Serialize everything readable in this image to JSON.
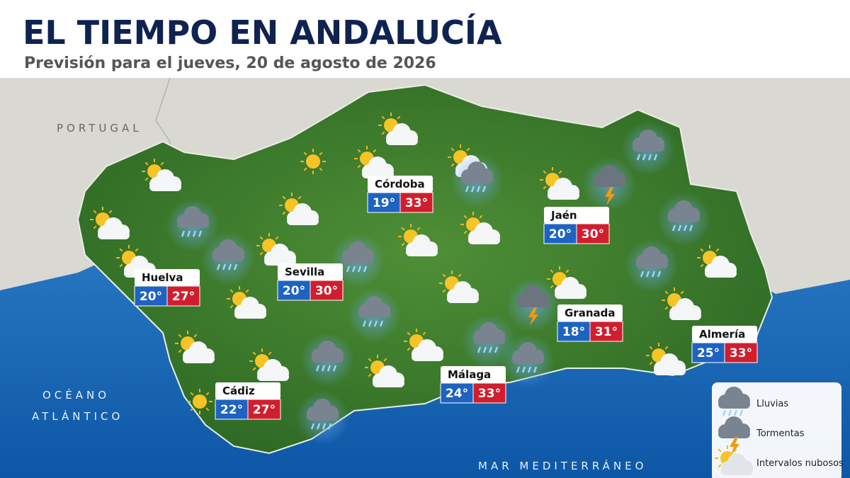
{
  "header": {
    "title": "EL TIEMPO EN ANDALUCÍA",
    "subtitle": "Previsión para el jueves, 20 de agosto de 2026"
  },
  "map_labels": {
    "portugal": "PORTUGAL",
    "atlantic": [
      "OCÉANO",
      "ATLÁNTICO"
    ],
    "mediterranean": "MAR MEDITERRÁNEO"
  },
  "cities": [
    {
      "name": "Córdoba",
      "min": "19°",
      "max": "33°"
    },
    {
      "name": "Jaén",
      "min": "20°",
      "max": "30°"
    },
    {
      "name": "Huelva",
      "min": "20°",
      "max": "27°"
    },
    {
      "name": "Sevilla",
      "min": "20°",
      "max": "30°"
    },
    {
      "name": "Granada",
      "min": "18°",
      "max": "31°"
    },
    {
      "name": "Almería",
      "min": "25°",
      "max": "33°"
    },
    {
      "name": "Cádiz",
      "min": "22°",
      "max": "27°"
    },
    {
      "name": "Málaga",
      "min": "24°",
      "max": "33°"
    }
  ],
  "legend": [
    {
      "label": "Lluvias"
    },
    {
      "label": "Tormentas"
    },
    {
      "label": "Intervalos nubosos"
    }
  ]
}
